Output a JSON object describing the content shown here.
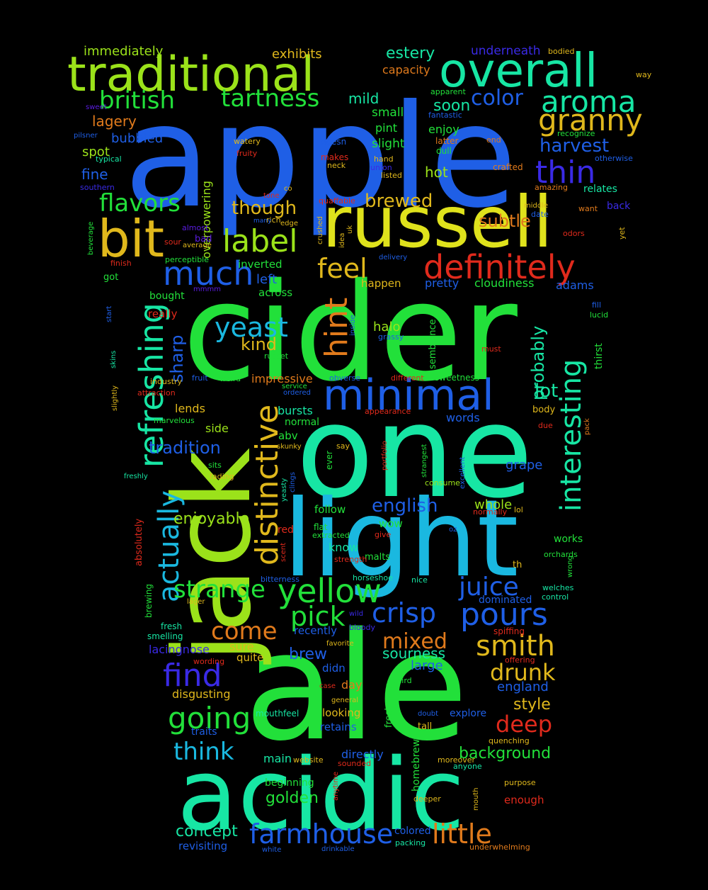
{
  "title": "word cloud",
  "palette": {
    "background": "#000000",
    "blue": "#1f5fe6",
    "cyan": "#1ab8e0",
    "teal": "#17e6a4",
    "green": "#22e03a",
    "lime": "#9be21a",
    "yellow": "#dfe21c",
    "gold": "#e0b81c",
    "orange": "#e07a1c",
    "red": "#e02a1c",
    "indigo": "#3a2ae6",
    "violet": "#5a1ce0"
  },
  "words": [
    {
      "text": "apple",
      "color": "blue"
    },
    {
      "text": "cider",
      "color": "green"
    },
    {
      "text": "one",
      "color": "teal"
    },
    {
      "text": "ale",
      "color": "green"
    },
    {
      "text": "jack",
      "color": "lime"
    },
    {
      "text": "light",
      "color": "cyan"
    },
    {
      "text": "acidic",
      "color": "teal"
    },
    {
      "text": "russell",
      "color": "yellow"
    },
    {
      "text": "traditional",
      "color": "lime"
    },
    {
      "text": "overall",
      "color": "teal"
    },
    {
      "text": "bit",
      "color": "gold"
    },
    {
      "text": "minimal",
      "color": "blue"
    },
    {
      "text": "definitely",
      "color": "red"
    },
    {
      "text": "refreshing",
      "color": "teal"
    },
    {
      "text": "distinctive",
      "color": "gold"
    },
    {
      "text": "interesting",
      "color": "teal"
    },
    {
      "text": "yellow",
      "color": "green"
    },
    {
      "text": "aroma",
      "color": "teal"
    },
    {
      "text": "thin",
      "color": "indigo"
    },
    {
      "text": "granny",
      "color": "gold"
    },
    {
      "text": "much",
      "color": "blue"
    },
    {
      "text": "label",
      "color": "lime"
    },
    {
      "text": "british",
      "color": "green"
    },
    {
      "text": "tartness",
      "color": "green"
    },
    {
      "text": "flavors",
      "color": "green"
    },
    {
      "text": "yeast",
      "color": "cyan"
    },
    {
      "text": "hint",
      "color": "orange"
    },
    {
      "text": "feel",
      "color": "gold"
    },
    {
      "text": "actually",
      "color": "cyan"
    },
    {
      "text": "juice",
      "color": "blue"
    },
    {
      "text": "pours",
      "color": "blue"
    },
    {
      "text": "crisp",
      "color": "blue"
    },
    {
      "text": "smith",
      "color": "gold"
    },
    {
      "text": "find",
      "color": "indigo"
    },
    {
      "text": "going",
      "color": "green"
    },
    {
      "text": "strange",
      "color": "green"
    },
    {
      "text": "pick",
      "color": "green"
    },
    {
      "text": "come",
      "color": "orange"
    },
    {
      "text": "drunk",
      "color": "gold"
    },
    {
      "text": "deep",
      "color": "red"
    },
    {
      "text": "little",
      "color": "orange"
    },
    {
      "text": "farmhouse",
      "color": "blue"
    },
    {
      "text": "think",
      "color": "cyan"
    },
    {
      "text": "mixed",
      "color": "orange"
    },
    {
      "text": "color",
      "color": "blue"
    },
    {
      "text": "harvest",
      "color": "blue"
    },
    {
      "text": "brewed",
      "color": "gold"
    },
    {
      "text": "subtle",
      "color": "orange"
    },
    {
      "text": "though",
      "color": "gold"
    },
    {
      "text": "probably",
      "color": "teal"
    },
    {
      "text": "lot",
      "color": "teal"
    },
    {
      "text": "sharp",
      "color": "blue"
    },
    {
      "text": "tradition",
      "color": "blue"
    },
    {
      "text": "english",
      "color": "blue"
    },
    {
      "text": "kind",
      "color": "gold"
    },
    {
      "text": "enjoyable",
      "color": "lime"
    },
    {
      "text": "brew",
      "color": "blue"
    },
    {
      "text": "style",
      "color": "gold"
    },
    {
      "text": "background",
      "color": "green"
    },
    {
      "text": "concept",
      "color": "teal"
    },
    {
      "text": "golden",
      "color": "green"
    },
    {
      "text": "overpowering",
      "color": "lime"
    },
    {
      "text": "estery",
      "color": "teal"
    },
    {
      "text": "exhibits",
      "color": "gold"
    },
    {
      "text": "immediately",
      "color": "lime"
    },
    {
      "text": "underneath",
      "color": "indigo"
    },
    {
      "text": "capacity",
      "color": "orange"
    },
    {
      "text": "mild",
      "color": "teal"
    },
    {
      "text": "soon",
      "color": "teal"
    },
    {
      "text": "lagery",
      "color": "orange"
    },
    {
      "text": "bubbled",
      "color": "blue"
    },
    {
      "text": "spot",
      "color": "lime"
    },
    {
      "text": "fine",
      "color": "blue"
    },
    {
      "text": "hot",
      "color": "lime"
    },
    {
      "text": "small",
      "color": "green"
    },
    {
      "text": "pint",
      "color": "green"
    },
    {
      "text": "slight",
      "color": "green"
    },
    {
      "text": "enjoy",
      "color": "green"
    },
    {
      "text": "grape",
      "color": "blue"
    },
    {
      "text": "sourness",
      "color": "teal"
    },
    {
      "text": "large",
      "color": "blue"
    },
    {
      "text": "england",
      "color": "blue"
    },
    {
      "text": "whole",
      "color": "lime"
    },
    {
      "text": "cloudiness",
      "color": "green"
    },
    {
      "text": "adams",
      "color": "blue"
    },
    {
      "text": "pretty",
      "color": "blue"
    },
    {
      "text": "left",
      "color": "blue"
    },
    {
      "text": "inverted",
      "color": "green"
    },
    {
      "text": "across",
      "color": "green"
    },
    {
      "text": "happen",
      "color": "gold"
    },
    {
      "text": "halo",
      "color": "lime"
    },
    {
      "text": "impressive",
      "color": "orange"
    },
    {
      "text": "bursts",
      "color": "teal"
    },
    {
      "text": "lends",
      "color": "gold"
    },
    {
      "text": "words",
      "color": "blue"
    },
    {
      "text": "side",
      "color": "lime"
    },
    {
      "text": "normal",
      "color": "green"
    },
    {
      "text": "abv",
      "color": "green"
    },
    {
      "text": "follow",
      "color": "green"
    },
    {
      "text": "know",
      "color": "teal"
    },
    {
      "text": "wow",
      "color": "green"
    },
    {
      "text": "recently",
      "color": "blue"
    },
    {
      "text": "sure",
      "color": "gold"
    },
    {
      "text": "quite",
      "color": "gold"
    },
    {
      "text": "lacingnose",
      "color": "indigo"
    },
    {
      "text": "disgusting",
      "color": "gold"
    },
    {
      "text": "day",
      "color": "orange"
    },
    {
      "text": "didn",
      "color": "blue"
    },
    {
      "text": "looking",
      "color": "gold"
    },
    {
      "text": "retains",
      "color": "blue"
    },
    {
      "text": "traits",
      "color": "blue"
    },
    {
      "text": "directly",
      "color": "blue"
    },
    {
      "text": "main",
      "color": "teal"
    },
    {
      "text": "beginning",
      "color": "green"
    },
    {
      "text": "revisiting",
      "color": "blue"
    },
    {
      "text": "colored",
      "color": "blue"
    },
    {
      "text": "homebrew",
      "color": "green"
    },
    {
      "text": "explore",
      "color": "blue"
    },
    {
      "text": "enough",
      "color": "red"
    },
    {
      "text": "body",
      "color": "gold"
    },
    {
      "text": "works",
      "color": "green"
    },
    {
      "text": "malts",
      "color": "green"
    },
    {
      "text": "red",
      "color": "red"
    },
    {
      "text": "dominated",
      "color": "blue"
    },
    {
      "text": "tall",
      "color": "gold"
    },
    {
      "text": "sweetness",
      "color": "green"
    },
    {
      "text": "semblance",
      "color": "green"
    },
    {
      "text": "freshness",
      "color": "green"
    },
    {
      "text": "thirst",
      "color": "green"
    },
    {
      "text": "absolutely",
      "color": "red"
    },
    {
      "text": "brewing",
      "color": "green"
    },
    {
      "text": "really",
      "color": "red"
    },
    {
      "text": "got",
      "color": "green"
    },
    {
      "text": "bought",
      "color": "green"
    },
    {
      "text": "relates",
      "color": "teal"
    },
    {
      "text": "back",
      "color": "indigo"
    },
    {
      "text": "recognize",
      "color": "green"
    },
    {
      "text": "crafted",
      "color": "orange"
    },
    {
      "text": "amazing",
      "color": "orange"
    },
    {
      "text": "otherwise",
      "color": "blue"
    },
    {
      "text": "bodied",
      "color": "gold"
    },
    {
      "text": "way",
      "color": "gold"
    },
    {
      "text": "apparent",
      "color": "green"
    },
    {
      "text": "fantastic",
      "color": "blue"
    },
    {
      "text": "latter",
      "color": "orange"
    },
    {
      "text": "dull",
      "color": "green"
    },
    {
      "text": "end",
      "color": "orange"
    },
    {
      "text": "doesn",
      "color": "blue"
    },
    {
      "text": "makes",
      "color": "red"
    },
    {
      "text": "neck",
      "color": "gold"
    },
    {
      "text": "hand",
      "color": "gold"
    },
    {
      "text": "union",
      "color": "indigo"
    },
    {
      "text": "listed",
      "color": "gold"
    },
    {
      "text": "watery",
      "color": "gold"
    },
    {
      "text": "fruity",
      "color": "red"
    },
    {
      "text": "tone",
      "color": "red"
    },
    {
      "text": "co",
      "color": "gold"
    },
    {
      "text": "rich",
      "color": "gold"
    },
    {
      "text": "many",
      "color": "blue"
    },
    {
      "text": "edge",
      "color": "gold"
    },
    {
      "text": "quaffable",
      "color": "red"
    },
    {
      "text": "crushed",
      "color": "gold"
    },
    {
      "text": "idea",
      "color": "gold"
    },
    {
      "text": "uk",
      "color": "gold"
    },
    {
      "text": "sweet",
      "color": "violet"
    },
    {
      "text": "pilsner",
      "color": "blue"
    },
    {
      "text": "typical",
      "color": "teal"
    },
    {
      "text": "southern",
      "color": "indigo"
    },
    {
      "text": "beverage",
      "color": "green"
    },
    {
      "text": "almost",
      "color": "violet"
    },
    {
      "text": "sour",
      "color": "red"
    },
    {
      "text": "bad",
      "color": "violet"
    },
    {
      "text": "average",
      "color": "gold"
    },
    {
      "text": "perceptible",
      "color": "green"
    },
    {
      "text": "finish",
      "color": "red"
    },
    {
      "text": "mmmm",
      "color": "violet"
    },
    {
      "text": "start",
      "color": "blue"
    },
    {
      "text": "skins",
      "color": "teal"
    },
    {
      "text": "slightly",
      "color": "gold"
    },
    {
      "text": "fruit",
      "color": "blue"
    },
    {
      "text": "weird",
      "color": "green"
    },
    {
      "text": "industry",
      "color": "gold"
    },
    {
      "text": "attraction",
      "color": "red"
    },
    {
      "text": "marvelous",
      "color": "green"
    },
    {
      "text": "freshly",
      "color": "teal"
    },
    {
      "text": "sits",
      "color": "green"
    },
    {
      "text": "fading",
      "color": "gold"
    },
    {
      "text": "yeasty",
      "color": "teal"
    },
    {
      "text": "clings",
      "color": "blue"
    },
    {
      "text": "skunky",
      "color": "gold"
    },
    {
      "text": "ordered",
      "color": "blue"
    },
    {
      "text": "service",
      "color": "green"
    },
    {
      "text": "russet",
      "color": "green"
    },
    {
      "text": "inside",
      "color": "blue"
    },
    {
      "text": "grassy",
      "color": "blue"
    },
    {
      "text": "obverse",
      "color": "blue"
    },
    {
      "text": "different",
      "color": "red"
    },
    {
      "text": "appearance",
      "color": "red"
    },
    {
      "text": "portfolio",
      "color": "red"
    },
    {
      "text": "say",
      "color": "gold"
    },
    {
      "text": "ever",
      "color": "green"
    },
    {
      "text": "strangest",
      "color": "green"
    },
    {
      "text": "consume",
      "color": "lime"
    },
    {
      "text": "excellent",
      "color": "blue"
    },
    {
      "text": "extracted",
      "color": "green"
    },
    {
      "text": "flat",
      "color": "green"
    },
    {
      "text": "give",
      "color": "red"
    },
    {
      "text": "strength",
      "color": "red"
    },
    {
      "text": "scent",
      "color": "red"
    },
    {
      "text": "horseshoe",
      "color": "teal"
    },
    {
      "text": "nice",
      "color": "teal"
    },
    {
      "text": "bitterness",
      "color": "blue"
    },
    {
      "text": "oz",
      "color": "blue"
    },
    {
      "text": "normally",
      "color": "red"
    },
    {
      "text": "lol",
      "color": "gold"
    },
    {
      "text": "th",
      "color": "gold"
    },
    {
      "text": "orchards",
      "color": "green"
    },
    {
      "text": "wrong",
      "color": "green"
    },
    {
      "text": "welches",
      "color": "teal"
    },
    {
      "text": "control",
      "color": "teal"
    },
    {
      "text": "lucid",
      "color": "green"
    },
    {
      "text": "fill",
      "color": "blue"
    },
    {
      "text": "pack",
      "color": "orange"
    },
    {
      "text": "due",
      "color": "red"
    },
    {
      "text": "must",
      "color": "red"
    },
    {
      "text": "lager",
      "color": "gold"
    },
    {
      "text": "fresh",
      "color": "teal"
    },
    {
      "text": "smelling",
      "color": "teal"
    },
    {
      "text": "wording",
      "color": "red"
    },
    {
      "text": "wild",
      "color": "indigo"
    },
    {
      "text": "bloody",
      "color": "indigo"
    },
    {
      "text": "favorite",
      "color": "gold"
    },
    {
      "text": "spiffing",
      "color": "red"
    },
    {
      "text": "offering",
      "color": "red"
    },
    {
      "text": "case",
      "color": "red"
    },
    {
      "text": "general",
      "color": "gold"
    },
    {
      "text": "third",
      "color": "green"
    },
    {
      "text": "doubt",
      "color": "blue"
    },
    {
      "text": "mouthfeel",
      "color": "teal"
    },
    {
      "text": "quenching",
      "color": "gold"
    },
    {
      "text": "website",
      "color": "gold"
    },
    {
      "text": "sounded",
      "color": "red"
    },
    {
      "text": "moreover",
      "color": "gold"
    },
    {
      "text": "anyone",
      "color": "teal"
    },
    {
      "text": "purpose",
      "color": "gold"
    },
    {
      "text": "anytime",
      "color": "red"
    },
    {
      "text": "mouth",
      "color": "gold"
    },
    {
      "text": "deeper",
      "color": "gold"
    },
    {
      "text": "white",
      "color": "blue"
    },
    {
      "text": "drinkable",
      "color": "blue"
    },
    {
      "text": "packing",
      "color": "teal"
    },
    {
      "text": "underwhelming",
      "color": "orange"
    },
    {
      "text": "want",
      "color": "orange"
    },
    {
      "text": "yet",
      "color": "gold"
    },
    {
      "text": "odors",
      "color": "red"
    },
    {
      "text": "date",
      "color": "blue"
    },
    {
      "text": "middle",
      "color": "gold"
    },
    {
      "text": "delivery",
      "color": "blue"
    }
  ]
}
